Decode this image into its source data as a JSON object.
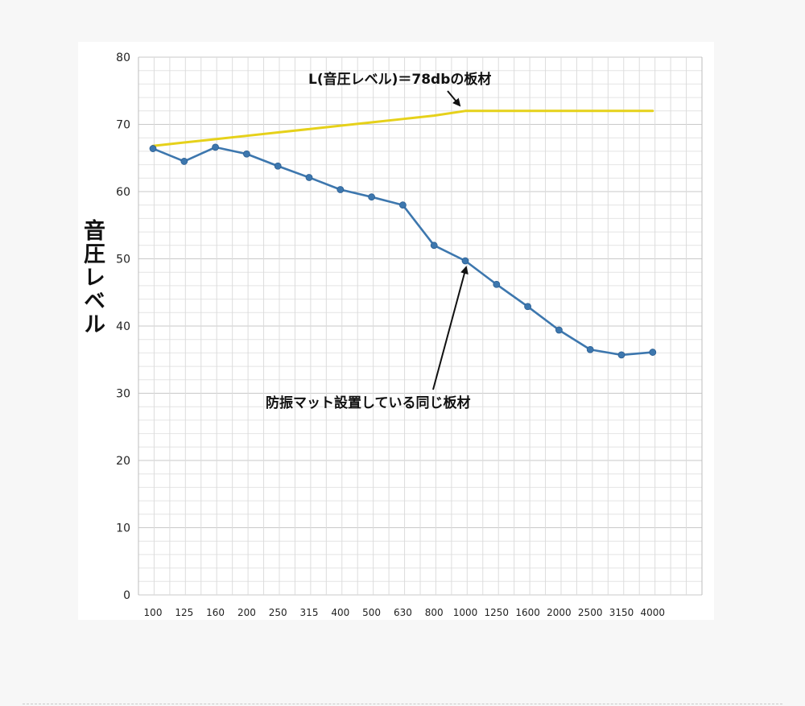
{
  "chart_data": {
    "type": "line",
    "title": "",
    "xlabel": "",
    "ylabel": "音圧レベル",
    "categories": [
      "100",
      "125",
      "160",
      "200",
      "250",
      "315",
      "400",
      "500",
      "630",
      "800",
      "1000",
      "1250",
      "1600",
      "2000",
      "2500",
      "3150",
      "4000"
    ],
    "ylim": [
      0,
      80
    ],
    "yticks": [
      0,
      10,
      20,
      30,
      40,
      50,
      60,
      70,
      80
    ],
    "grid": true,
    "series": [
      {
        "name": "L(音圧レベル)＝78dbの板材",
        "color": "#e6d11a",
        "markers": false,
        "values": [
          66.8,
          67.3,
          67.8,
          68.3,
          68.8,
          69.3,
          69.8,
          70.3,
          70.8,
          71.3,
          72.0,
          72.0,
          72.0,
          72.0,
          72.0,
          72.0,
          72.0
        ]
      },
      {
        "name": "防振マット設置している同じ板材",
        "color": "#3d77ae",
        "markers": true,
        "values": [
          66.4,
          64.5,
          66.6,
          65.6,
          63.8,
          62.1,
          60.3,
          59.2,
          58.0,
          52.0,
          49.7,
          46.2,
          42.9,
          39.4,
          36.5,
          35.7,
          36.1
        ]
      }
    ],
    "annotations": [
      {
        "text": "L(音圧レベル)＝78dbの板材",
        "series": 0,
        "point_index": 10
      },
      {
        "text": "防振マット設置している同じ板材",
        "series": 1,
        "point_index": 10
      }
    ]
  }
}
